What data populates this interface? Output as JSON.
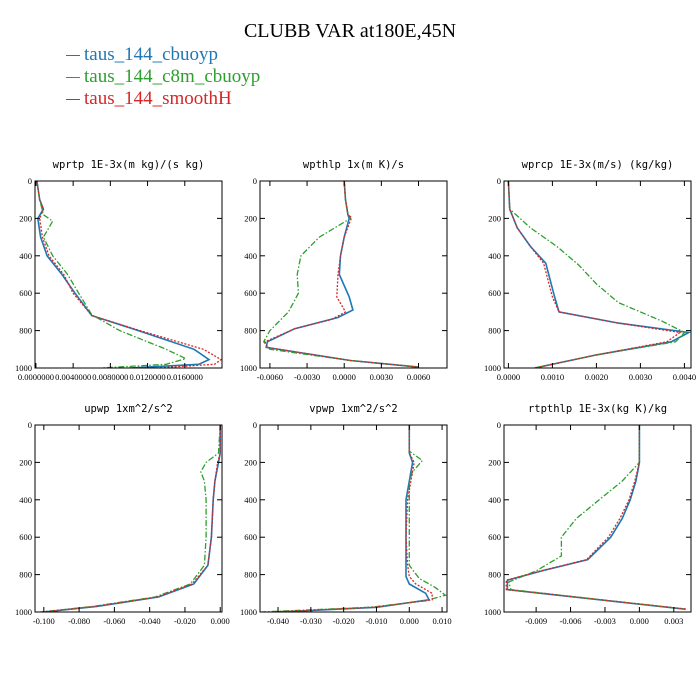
{
  "title": "CLUBB VAR at180E,45N",
  "legend": [
    {
      "label": "taus_144_cbuoyp",
      "color": "#1f77b4",
      "dash": "solid"
    },
    {
      "label": "taus_144_c8m_cbuoyp",
      "color": "#2ca02c",
      "dash": "dashdot"
    },
    {
      "label": "taus_144_smoothH",
      "color": "#d62728",
      "dash": "dotted"
    }
  ],
  "chart_data": [
    {
      "type": "line",
      "title": "wprtp  1E-3x(m kg)/(s kg)",
      "xlim": [
        -0.0001,
        0.02
      ],
      "xticks": [
        0.0,
        0.004,
        0.008,
        0.012,
        0.016
      ],
      "xticklabels": [
        "0.0000000",
        "0.0040000",
        "0.0080000",
        "0.0120000",
        "0.0160000"
      ],
      "ylim": [
        0,
        1000
      ],
      "yticks": [
        0,
        200,
        400,
        600,
        800,
        1000
      ],
      "yticklabels": [
        "0",
        "200",
        "400",
        "600",
        "800",
        "1000"
      ],
      "series": [
        {
          "name": "taus_144_cbuoyp",
          "x": [
            0.0001,
            0.0004,
            0.0008,
            0.0002,
            0.0005,
            0.0012,
            0.0028,
            0.0042,
            0.006,
            0.011,
            0.017,
            0.0186,
            0.0175,
            0.01
          ],
          "y": [
            0,
            100,
            150,
            200,
            300,
            400,
            500,
            600,
            720,
            800,
            900,
            955,
            980,
            1000
          ]
        },
        {
          "name": "taus_144_c8m_cbuoyp",
          "x": [
            0.0001,
            0.0004,
            0.0008,
            0.0018,
            0.0008,
            0.0018,
            0.0034,
            0.0046,
            0.006,
            0.009,
            0.014,
            0.0161,
            0.014,
            0.007
          ],
          "y": [
            0,
            100,
            180,
            215,
            300,
            400,
            500,
            600,
            715,
            800,
            900,
            950,
            980,
            1000
          ]
        },
        {
          "name": "taus_144_smoothH",
          "x": [
            0.0001,
            0.0004,
            0.0008,
            0.0004,
            0.0007,
            0.0014,
            0.003,
            0.004,
            0.006,
            0.0112,
            0.018,
            0.0199,
            0.0192,
            0.013
          ],
          "y": [
            0,
            100,
            150,
            200,
            300,
            400,
            500,
            600,
            720,
            800,
            900,
            955,
            980,
            1000
          ]
        }
      ]
    },
    {
      "type": "line",
      "title": "wpthlp  1x(m K)/s",
      "xlim": [
        -0.0068,
        0.0083
      ],
      "xticks": [
        -0.006,
        -0.003,
        0.0,
        0.003,
        0.006
      ],
      "xticklabels": [
        "-0.0060",
        "-0.0030",
        "0.0000",
        "0.0030",
        "0.0060"
      ],
      "ylim": [
        0,
        1000
      ],
      "yticks": [
        0,
        200,
        400,
        600,
        800,
        1000
      ],
      "yticklabels": [
        "0",
        "200",
        "400",
        "600",
        "800",
        "1000"
      ],
      "series": [
        {
          "name": "taus_144_cbuoyp",
          "x": [
            0.0,
            0.0001,
            0.0003,
            0.0004,
            0.0,
            -0.0003,
            -0.0004,
            0.0004,
            0.0007,
            -0.0005,
            -0.004,
            -0.0062,
            -0.0063,
            0.0005,
            0.006
          ],
          "y": [
            0,
            100,
            180,
            200,
            300,
            400,
            500,
            620,
            690,
            730,
            790,
            860,
            890,
            960,
            995
          ]
        },
        {
          "name": "taus_144_c8m_cbuoyp",
          "x": [
            0.0,
            0.0001,
            0.0003,
            0.0005,
            -0.002,
            -0.0035,
            -0.0038,
            -0.0037,
            -0.0045,
            -0.006,
            -0.0065,
            -0.006,
            0.0005,
            0.006
          ],
          "y": [
            0,
            100,
            170,
            200,
            300,
            400,
            500,
            600,
            700,
            800,
            860,
            900,
            960,
            995
          ]
        },
        {
          "name": "taus_144_smoothH",
          "x": [
            0.0,
            0.0001,
            0.0003,
            0.0006,
            0.0,
            -0.0003,
            -0.0005,
            -0.0006,
            0.0001,
            -0.001,
            -0.004,
            -0.0064,
            -0.0062,
            0.0005,
            0.006
          ],
          "y": [
            0,
            100,
            180,
            195,
            300,
            400,
            500,
            620,
            700,
            740,
            790,
            860,
            890,
            960,
            995
          ]
        }
      ]
    },
    {
      "type": "line",
      "title": "wprcp  1E-3x(m/s) (kg/kg)",
      "xlim": [
        -0.0001,
        0.00415
      ],
      "xticks": [
        0.0,
        0.001,
        0.002,
        0.003,
        0.004
      ],
      "xticklabels": [
        "0.0000",
        "0.0010",
        "0.0020",
        "0.0030",
        "0.0040"
      ],
      "ylim": [
        0,
        1000
      ],
      "yticks": [
        0,
        200,
        400,
        600,
        800,
        1000
      ],
      "yticklabels": [
        "0",
        "200",
        "400",
        "600",
        "800",
        "1000"
      ],
      "series": [
        {
          "name": "taus_144_cbuoyp",
          "x": [
            0.0,
            3e-05,
            0.0002,
            0.0005,
            0.00085,
            0.00095,
            0.00105,
            0.00115,
            0.0025,
            0.0041,
            0.0037,
            0.002,
            0.0006
          ],
          "y": [
            0,
            150,
            250,
            350,
            440,
            530,
            620,
            700,
            760,
            810,
            860,
            930,
            1000
          ]
        },
        {
          "name": "taus_144_c8m_cbuoyp",
          "x": [
            0.0,
            3e-05,
            0.0005,
            0.0011,
            0.0016,
            0.002,
            0.0025,
            0.0035,
            0.004,
            0.0038,
            0.002,
            0.0006
          ],
          "y": [
            0,
            150,
            250,
            350,
            450,
            550,
            650,
            750,
            810,
            860,
            930,
            1000
          ]
        },
        {
          "name": "taus_144_smoothH",
          "x": [
            0.0,
            3e-05,
            0.0002,
            0.0005,
            0.0008,
            0.0009,
            0.001,
            0.00115,
            0.0025,
            0.0039,
            0.0036,
            0.002,
            0.0006
          ],
          "y": [
            0,
            150,
            250,
            350,
            440,
            530,
            620,
            700,
            760,
            810,
            860,
            930,
            1000
          ]
        }
      ]
    },
    {
      "type": "line",
      "title": "upwp  1xm^2/s^2",
      "xlim": [
        -0.105,
        0.001
      ],
      "xticks": [
        -0.1,
        -0.08,
        -0.06,
        -0.04,
        -0.02,
        0.0
      ],
      "xticklabels": [
        "-0.100",
        "-0.080",
        "-0.060",
        "-0.040",
        "-0.020",
        "0.000"
      ],
      "ylim": [
        0,
        1000
      ],
      "yticks": [
        0,
        200,
        400,
        600,
        800,
        1000
      ],
      "yticklabels": [
        "0",
        "200",
        "400",
        "600",
        "800",
        "1000"
      ],
      "series": [
        {
          "name": "taus_144_cbuoyp",
          "x": [
            0.0,
            0.0,
            -0.001,
            -0.003,
            -0.004,
            -0.0045,
            -0.005,
            -0.007,
            -0.015,
            -0.035,
            -0.07,
            -0.1
          ],
          "y": [
            0,
            150,
            200,
            300,
            400,
            500,
            600,
            750,
            850,
            920,
            970,
            1000
          ]
        },
        {
          "name": "taus_144_c8m_cbuoyp",
          "x": [
            0.0,
            -0.001,
            -0.008,
            -0.011,
            -0.009,
            -0.008,
            -0.008,
            -0.009,
            -0.017,
            -0.037,
            -0.072,
            -0.102
          ],
          "y": [
            0,
            150,
            200,
            250,
            300,
            400,
            600,
            750,
            850,
            920,
            970,
            1000
          ]
        },
        {
          "name": "taus_144_smoothH",
          "x": [
            0.0,
            0.0,
            -0.0015,
            -0.003,
            -0.004,
            -0.0045,
            -0.005,
            -0.007,
            -0.016,
            -0.036,
            -0.071,
            -0.101
          ],
          "y": [
            0,
            150,
            200,
            300,
            400,
            500,
            600,
            750,
            850,
            920,
            970,
            1000
          ]
        }
      ]
    },
    {
      "type": "line",
      "title": "vpwp  1xm^2/s^2",
      "xlim": [
        -0.0455,
        0.0115
      ],
      "xticks": [
        -0.04,
        -0.03,
        -0.02,
        -0.01,
        0.0,
        0.01
      ],
      "xticklabels": [
        "-0.040",
        "-0.030",
        "-0.020",
        "-0.010",
        "0.000",
        "0.010"
      ],
      "ylim": [
        0,
        1000
      ],
      "yticks": [
        0,
        200,
        400,
        600,
        800,
        1000
      ],
      "yticklabels": [
        "0",
        "200",
        "400",
        "600",
        "800",
        "1000"
      ],
      "series": [
        {
          "name": "taus_144_cbuoyp",
          "x": [
            0.0,
            0.0,
            0.001,
            0.0,
            -0.001,
            -0.001,
            -0.001,
            -0.001,
            0.0,
            0.005,
            0.006,
            -0.01,
            -0.04
          ],
          "y": [
            0,
            150,
            200,
            300,
            400,
            600,
            750,
            810,
            850,
            900,
            935,
            975,
            1000
          ]
        },
        {
          "name": "taus_144_c8m_cbuoyp",
          "x": [
            0.0,
            0.0,
            0.004,
            0.001,
            0.0,
            0.0,
            0.0,
            0.003,
            0.008,
            0.011,
            0.005,
            -0.012,
            -0.045
          ],
          "y": [
            0,
            140,
            190,
            250,
            300,
            500,
            750,
            820,
            870,
            910,
            940,
            975,
            1000
          ]
        },
        {
          "name": "taus_144_smoothH",
          "x": [
            0.0,
            0.0,
            0.0015,
            0.0005,
            -0.0005,
            -0.001,
            -0.0005,
            0.0,
            0.002,
            0.007,
            0.007,
            -0.011,
            -0.042
          ],
          "y": [
            0,
            150,
            200,
            300,
            400,
            600,
            750,
            810,
            850,
            900,
            935,
            975,
            1000
          ]
        }
      ]
    },
    {
      "type": "line",
      "title": "rtpthlp  1E-3x(kg K)/kg",
      "xlim": [
        -0.0118,
        0.0045
      ],
      "xticks": [
        -0.009,
        -0.006,
        -0.003,
        0.0,
        0.003
      ],
      "xticklabels": [
        "-0.009",
        "-0.006",
        "-0.003",
        "0.000",
        "0.003"
      ],
      "ylim": [
        0,
        1000
      ],
      "yticks": [
        0,
        200,
        400,
        600,
        800,
        1000
      ],
      "yticklabels": [
        "0",
        "200",
        "400",
        "600",
        "800",
        "1000"
      ],
      "series": [
        {
          "name": "taus_144_cbuoyp",
          "x": [
            0.0,
            0.0,
            -0.0003,
            -0.0008,
            -0.0015,
            -0.0025,
            -0.0045,
            -0.0085,
            -0.0115,
            -0.0115,
            0.004
          ],
          "y": [
            0,
            200,
            300,
            400,
            500,
            600,
            720,
            780,
            830,
            880,
            985
          ]
        },
        {
          "name": "taus_144_c8m_cbuoyp",
          "x": [
            0.0,
            0.0,
            -0.0015,
            -0.0035,
            -0.0055,
            -0.0068,
            -0.0068,
            -0.009,
            -0.0114,
            -0.0112,
            0.004
          ],
          "y": [
            0,
            200,
            300,
            400,
            500,
            600,
            700,
            780,
            840,
            880,
            985
          ]
        },
        {
          "name": "taus_144_smoothH",
          "x": [
            0.0,
            0.0,
            -0.0004,
            -0.0009,
            -0.0017,
            -0.0027,
            -0.0046,
            -0.0086,
            -0.0116,
            -0.0116,
            0.0042
          ],
          "y": [
            0,
            200,
            300,
            400,
            500,
            600,
            720,
            780,
            830,
            880,
            985
          ]
        }
      ]
    }
  ]
}
